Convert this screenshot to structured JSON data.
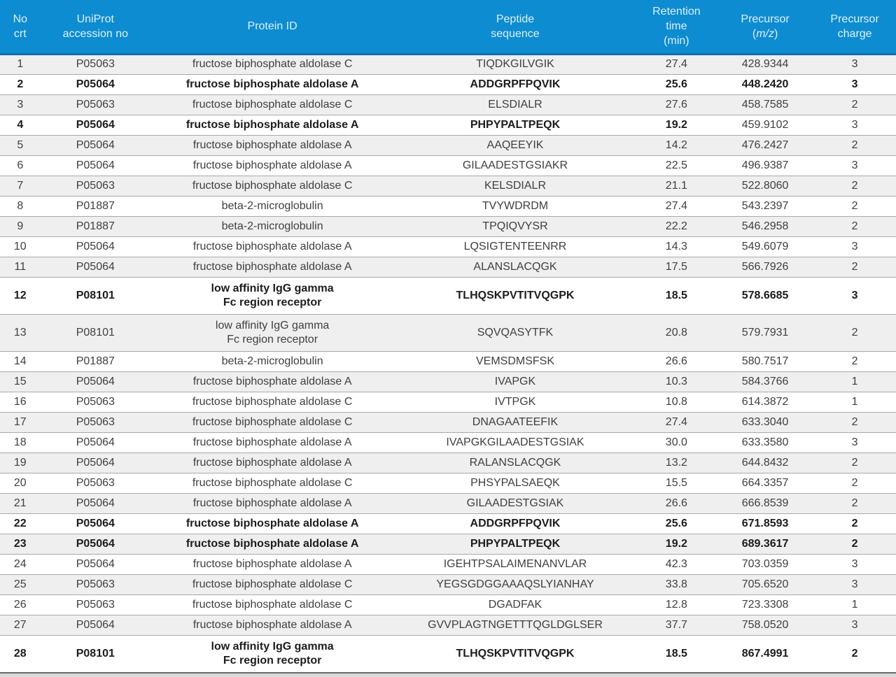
{
  "colors": {
    "header_bg": "#0d8cd1",
    "header_text": "#dff0fa",
    "header_divider": "#1470a8",
    "row_stripe": "#efefef",
    "row_white": "#ffffff",
    "row_border": "#a9a9a9",
    "body_text": "#3f3f3f",
    "bold_text": "#1c1c1c",
    "bottom_border": "#6a6a6a",
    "bottom_strip": "#d9d9d9"
  },
  "table": {
    "header": {
      "columns": [
        {
          "key": "no",
          "lines": [
            "No",
            "crt"
          ]
        },
        {
          "key": "accession",
          "lines": [
            "UniProt",
            "accession no"
          ]
        },
        {
          "key": "protein",
          "lines": [
            "Protein ID"
          ]
        },
        {
          "key": "peptide",
          "lines": [
            "Peptide",
            "sequence"
          ]
        },
        {
          "key": "rt",
          "lines": [
            "Retention",
            "time",
            "(min)"
          ]
        },
        {
          "key": "mz",
          "lines": [
            "Precursor",
            {
              "pre": "(",
              "italic": "m/z",
              "post": ")"
            }
          ]
        },
        {
          "key": "charge",
          "lines": [
            "Precursor",
            "charge"
          ]
        }
      ]
    },
    "rows": [
      {
        "no": "1",
        "accession": "P05063",
        "protein": "fructose biphosphate aldolase C",
        "peptide": "TIQDKGILVGIK",
        "rt": "27.4",
        "mz": "428.9344",
        "charge": "3",
        "bold": false
      },
      {
        "no": "2",
        "accession": "P05064",
        "protein": "fructose biphosphate aldolase A",
        "peptide": "ADDGRPFPQVIK",
        "rt": "25.6",
        "mz": "448.2420",
        "charge": "3",
        "bold": true
      },
      {
        "no": "3",
        "accession": "P05063",
        "protein": "fructose biphosphate aldolase C",
        "peptide": "ELSDIALR",
        "rt": "27.6",
        "mz": "458.7585",
        "charge": "2",
        "bold": false
      },
      {
        "no": "4",
        "accession": "P05064",
        "protein": "fructose biphosphate aldolase A",
        "peptide": "PHPYPALTPEQK",
        "rt": "19.2",
        "mz": "459.9102",
        "charge": "3",
        "bold": true,
        "regular": [
          "mz",
          "charge"
        ]
      },
      {
        "no": "5",
        "accession": "P05064",
        "protein": "fructose biphosphate aldolase A",
        "peptide": "AAQEEYIK",
        "rt": "14.2",
        "mz": "476.2427",
        "charge": "2",
        "bold": false
      },
      {
        "no": "6",
        "accession": "P05064",
        "protein": "fructose biphosphate aldolase A",
        "peptide": "GILAADESTGSIAKR",
        "rt": "22.5",
        "mz": "496.9387",
        "charge": "3",
        "bold": false
      },
      {
        "no": "7",
        "accession": "P05063",
        "protein": "fructose biphosphate aldolase C",
        "peptide": "KELSDIALR",
        "rt": "21.1",
        "mz": "522.8060",
        "charge": "2",
        "bold": false
      },
      {
        "no": "8",
        "accession": "P01887",
        "protein": "beta-2-microglobulin",
        "peptide": "TVYWDRDM",
        "rt": "27.4",
        "mz": "543.2397",
        "charge": "2",
        "bold": false
      },
      {
        "no": "9",
        "accession": "P01887",
        "protein": "beta-2-microglobulin",
        "peptide": "TPQIQVYSR",
        "rt": "22.2",
        "mz": "546.2958",
        "charge": "2",
        "bold": false
      },
      {
        "no": "10",
        "accession": "P05064",
        "protein": "fructose biphosphate aldolase A",
        "peptide": "LQSIGTENTEENRR",
        "rt": "14.3",
        "mz": "549.6079",
        "charge": "3",
        "bold": false
      },
      {
        "no": "11",
        "accession": "P05064",
        "protein": "fructose biphosphate aldolase A",
        "peptide": "ALANSLACQGK",
        "rt": "17.5",
        "mz": "566.7926",
        "charge": "2",
        "bold": false
      },
      {
        "no": "12",
        "accession": "P08101",
        "protein": "low affinity IgG gamma\nFc region receptor",
        "peptide": "TLHQSKPVTITVQGPK",
        "rt": "18.5",
        "mz": "578.6685",
        "charge": "3",
        "bold": true
      },
      {
        "no": "13",
        "accession": "P08101",
        "protein": "low affinity IgG gamma\nFc region receptor",
        "peptide": "SQVQASYTFK",
        "rt": "20.8",
        "mz": "579.7931",
        "charge": "2",
        "bold": false
      },
      {
        "no": "14",
        "accession": "P01887",
        "protein": "beta-2-microglobulin",
        "peptide": "VEMSDMSFSK",
        "rt": "26.6",
        "mz": "580.7517",
        "charge": "2",
        "bold": false
      },
      {
        "no": "15",
        "accession": "P05064",
        "protein": "fructose biphosphate aldolase A",
        "peptide": "IVAPGK",
        "rt": "10.3",
        "mz": "584.3766",
        "charge": "1",
        "bold": false
      },
      {
        "no": "16",
        "accession": "P05063",
        "protein": "fructose biphosphate aldolase C",
        "peptide": "IVTPGK",
        "rt": "10.8",
        "mz": "614.3872",
        "charge": "1",
        "bold": false
      },
      {
        "no": "17",
        "accession": "P05063",
        "protein": "fructose biphosphate aldolase C",
        "peptide": "DNAGAATEEFIK",
        "rt": "27.4",
        "mz": "633.3040",
        "charge": "2",
        "bold": false
      },
      {
        "no": "18",
        "accession": "P05064",
        "protein": "fructose biphosphate aldolase A",
        "peptide": "IVAPGKGILAADESTGSIAK",
        "rt": "30.0",
        "mz": "633.3580",
        "charge": "3",
        "bold": false
      },
      {
        "no": "19",
        "accession": "P05064",
        "protein": "fructose biphosphate aldolase A",
        "peptide": "RALANSLACQGK",
        "rt": "13.2",
        "mz": "644.8432",
        "charge": "2",
        "bold": false
      },
      {
        "no": "20",
        "accession": "P05063",
        "protein": "fructose biphosphate aldolase C",
        "peptide": "PHSYPALSAEQK",
        "rt": "15.5",
        "mz": "664.3357",
        "charge": "2",
        "bold": false
      },
      {
        "no": "21",
        "accession": "P05064",
        "protein": "fructose biphosphate aldolase A",
        "peptide": "GILAADESTGSIAK",
        "rt": "26.6",
        "mz": "666.8539",
        "charge": "2",
        "bold": false
      },
      {
        "no": "22",
        "accession": "P05064",
        "protein": "fructose biphosphate aldolase A",
        "peptide": "ADDGRPFPQVIK",
        "rt": "25.6",
        "mz": "671.8593",
        "charge": "2",
        "bold": true
      },
      {
        "no": "23",
        "accession": "P05064",
        "protein": "fructose biphosphate aldolase A",
        "peptide": "PHPYPALTPEQK",
        "rt": "19.2",
        "mz": "689.3617",
        "charge": "2",
        "bold": true
      },
      {
        "no": "24",
        "accession": "P05064",
        "protein": "fructose biphosphate aldolase A",
        "peptide": "IGEHTPSALAIMENANVLAR",
        "rt": "42.3",
        "mz": "703.0359",
        "charge": "3",
        "bold": false
      },
      {
        "no": "25",
        "accession": "P05063",
        "protein": "fructose biphosphate aldolase C",
        "peptide": "YEGSGDGGAAAQSLYIANHAY",
        "rt": "33.8",
        "mz": "705.6520",
        "charge": "3",
        "bold": false
      },
      {
        "no": "26",
        "accession": "P05063",
        "protein": "fructose biphosphate aldolase C",
        "peptide": "DGADFAK",
        "rt": "12.8",
        "mz": "723.3308",
        "charge": "1",
        "bold": false
      },
      {
        "no": "27",
        "accession": "P05064",
        "protein": "fructose biphosphate aldolase A",
        "peptide": "GVVPLAGTNGETTTQGLDGLSER",
        "rt": "37.7",
        "mz": "758.0520",
        "charge": "3",
        "bold": false
      },
      {
        "no": "28",
        "accession": "P08101",
        "protein": "low affinity IgG gamma\nFc region receptor",
        "peptide": "TLHQSKPVTITVQGPK",
        "rt": "18.5",
        "mz": "867.4991",
        "charge": "2",
        "bold": true
      }
    ]
  }
}
